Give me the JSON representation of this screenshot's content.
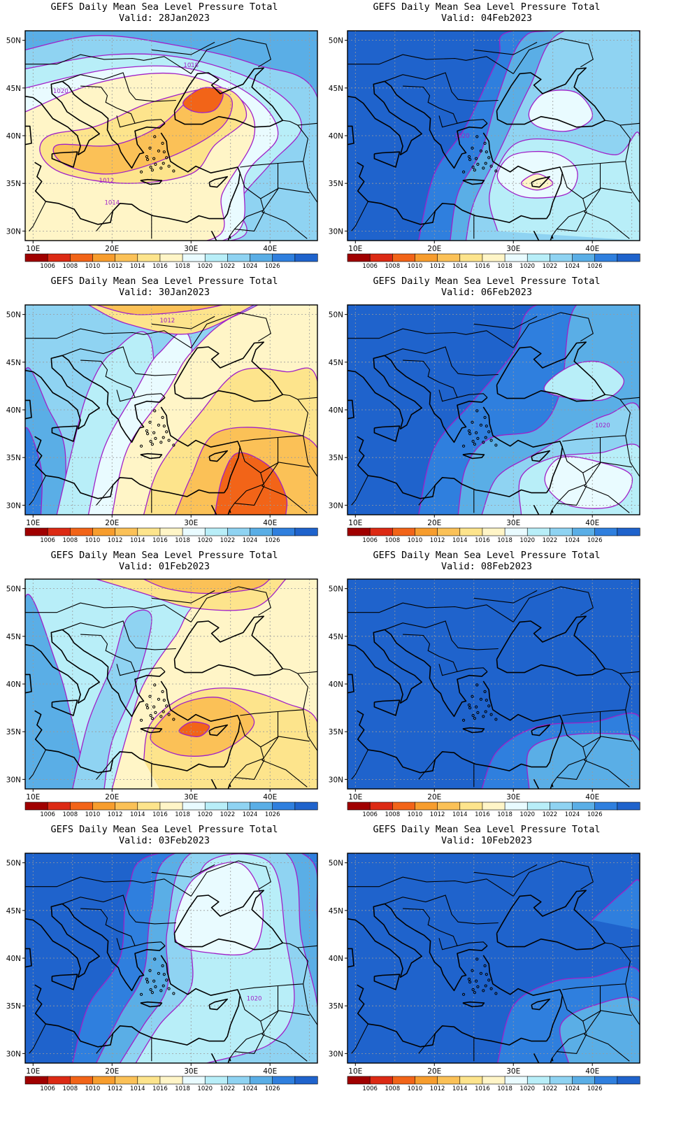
{
  "figure": {
    "panels": [
      {
        "title_line1": "GEFS Daily Mean Sea Level Pressure Total",
        "title_line2": "Valid: 28Jan2023",
        "regime": "low",
        "isobar_labels": [
          "1018",
          "1020",
          "1012",
          "1014"
        ]
      },
      {
        "title_line1": "GEFS Daily Mean Sea Level Pressure Total",
        "title_line2": "Valid: 04Feb2023",
        "regime": "high",
        "isobar_labels": [
          "1020"
        ]
      },
      {
        "title_line1": "GEFS Daily Mean Sea Level Pressure Total",
        "title_line2": "Valid: 30Jan2023",
        "regime": "low",
        "isobar_labels": [
          "1012"
        ]
      },
      {
        "title_line1": "GEFS Daily Mean Sea Level Pressure Total",
        "title_line2": "Valid: 06Feb2023",
        "regime": "high",
        "isobar_labels": [
          "1020"
        ]
      },
      {
        "title_line1": "GEFS Daily Mean Sea Level Pressure Total",
        "title_line2": "Valid: 01Feb2023",
        "regime": "low",
        "isobar_labels": []
      },
      {
        "title_line1": "GEFS Daily Mean Sea Level Pressure Total",
        "title_line2": "Valid: 08Feb2023",
        "regime": "high",
        "isobar_labels": []
      },
      {
        "title_line1": "GEFS Daily Mean Sea Level Pressure Total",
        "title_line2": "Valid: 03Feb2023",
        "regime": "mixed",
        "isobar_labels": [
          "1020"
        ]
      },
      {
        "title_line1": "GEFS Daily Mean Sea Level Pressure Total",
        "title_line2": "Valid: 10Feb2023",
        "regime": "high",
        "isobar_labels": []
      }
    ],
    "axes": {
      "lat_labels": [
        "50N",
        "45N",
        "40N",
        "35N",
        "30N"
      ],
      "lon_labels": [
        "10E",
        "20E",
        "30E",
        "40E"
      ]
    },
    "colorbar": {
      "labels": [
        "1006",
        "1008",
        "1010",
        "1012",
        "1014",
        "1016",
        "1018",
        "1020",
        "1022",
        "1024",
        "1026"
      ],
      "colors": [
        "#a00000",
        "#dc2a14",
        "#f26418",
        "#f79d2d",
        "#fbc157",
        "#fde48c",
        "#fff5c7",
        "#e9fbff",
        "#b8eef8",
        "#8fd3f2",
        "#5aaee6",
        "#2f7fde",
        "#1f63cc"
      ]
    },
    "colors": {
      "isobar": "#a020c8",
      "grid": "#9a9a9a"
    }
  }
}
